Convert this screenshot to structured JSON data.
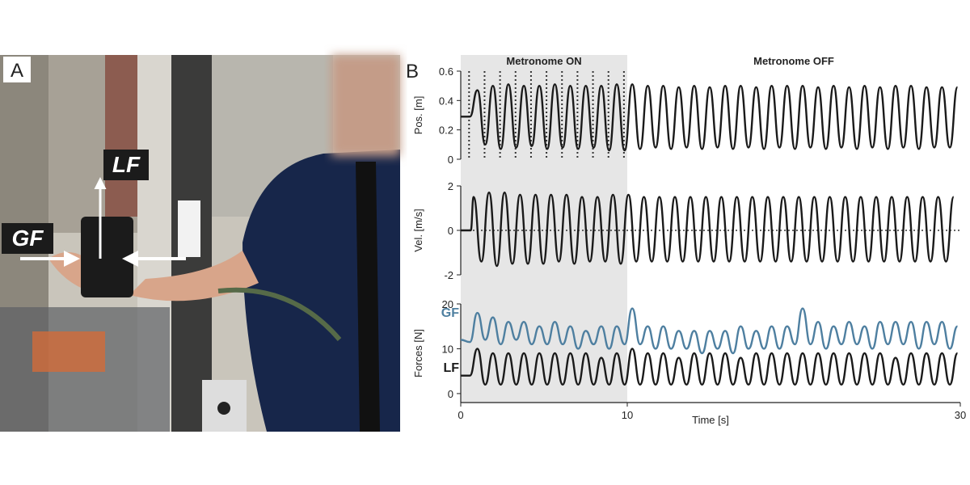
{
  "photo": {
    "panel_label": "A",
    "lf_label": "LF",
    "gf_label": "GF"
  },
  "chart_data": [
    {
      "type": "line",
      "panel_label": "B",
      "ylabel": "Pos. [m]",
      "annotations": [
        "Metronome ON",
        "Metronome OFF"
      ],
      "shade": [
        0,
        10
      ],
      "beats": [
        0.5,
        1.43,
        2.36,
        3.29,
        4.22,
        5.15,
        6.08,
        7.01,
        7.94,
        8.87,
        9.8
      ],
      "xlim": [
        0,
        30
      ],
      "ylim": [
        0,
        0.6
      ],
      "yticks": [
        0,
        0.2,
        0.4,
        0.6
      ],
      "x": [
        0,
        0.55,
        1.0,
        1.47,
        1.93,
        2.4,
        2.86,
        3.33,
        3.79,
        4.26,
        4.72,
        5.19,
        5.65,
        6.12,
        6.58,
        7.05,
        7.51,
        7.98,
        8.44,
        8.91,
        9.37,
        9.84,
        10.3,
        10.77,
        11.23,
        11.7,
        12.16,
        12.63,
        13.09,
        13.56,
        14.02,
        14.49,
        14.95,
        15.42,
        15.88,
        16.35,
        16.81,
        17.28,
        17.74,
        18.21,
        18.67,
        19.14,
        19.6,
        20.07,
        20.53,
        21.0,
        21.46,
        21.93,
        22.39,
        22.86,
        23.32,
        23.79,
        24.25,
        24.72,
        25.18,
        25.65,
        26.11,
        26.58,
        27.04,
        27.51,
        27.97,
        28.44,
        28.9,
        29.37,
        29.83
      ],
      "series": [
        {
          "color": "#1a1a1a",
          "values": [
            0.29,
            0.29,
            0.47,
            0.1,
            0.5,
            0.07,
            0.51,
            0.08,
            0.5,
            0.09,
            0.5,
            0.07,
            0.51,
            0.08,
            0.5,
            0.07,
            0.5,
            0.08,
            0.5,
            0.06,
            0.51,
            0.06,
            0.51,
            0.07,
            0.5,
            0.08,
            0.5,
            0.07,
            0.49,
            0.08,
            0.5,
            0.07,
            0.49,
            0.08,
            0.5,
            0.07,
            0.5,
            0.08,
            0.49,
            0.07,
            0.5,
            0.08,
            0.5,
            0.07,
            0.5,
            0.08,
            0.49,
            0.07,
            0.5,
            0.08,
            0.49,
            0.07,
            0.5,
            0.08,
            0.49,
            0.07,
            0.5,
            0.08,
            0.5,
            0.07,
            0.49,
            0.08,
            0.49,
            0.08,
            0.49
          ]
        }
      ]
    },
    {
      "type": "line",
      "ylabel": "Vel. [m/s]",
      "xlim": [
        0,
        30
      ],
      "ylim": [
        -2,
        2
      ],
      "yticks": [
        -2,
        0,
        2
      ],
      "x": [
        0,
        0.6,
        0.77,
        1.24,
        1.7,
        2.17,
        2.63,
        3.1,
        3.56,
        4.03,
        4.49,
        4.96,
        5.42,
        5.89,
        6.35,
        6.82,
        7.28,
        7.75,
        8.21,
        8.68,
        9.14,
        9.61,
        10.07,
        10.54,
        11.0,
        11.47,
        11.93,
        12.4,
        12.86,
        13.33,
        13.79,
        14.26,
        14.72,
        15.19,
        15.65,
        16.12,
        16.58,
        17.05,
        17.51,
        17.98,
        18.44,
        18.91,
        19.37,
        19.84,
        20.3,
        20.77,
        21.23,
        21.7,
        22.16,
        22.63,
        23.09,
        23.56,
        24.02,
        24.49,
        24.95,
        25.42,
        25.88,
        26.35,
        26.81,
        27.28,
        27.74,
        28.21,
        28.67,
        29.14,
        29.6
      ],
      "series": [
        {
          "color": "#1a1a1a",
          "values": [
            0,
            0,
            1.5,
            -1.4,
            1.7,
            -1.6,
            1.7,
            -1.5,
            1.6,
            -1.5,
            1.6,
            -1.5,
            1.6,
            -1.4,
            1.6,
            -1.5,
            1.5,
            -1.4,
            1.5,
            -1.4,
            1.6,
            -1.5,
            1.6,
            -1.4,
            1.5,
            -1.4,
            1.5,
            -1.4,
            1.5,
            -1.4,
            1.5,
            -1.4,
            1.5,
            -1.4,
            1.5,
            -1.4,
            1.5,
            -1.4,
            1.5,
            -1.4,
            1.5,
            -1.4,
            1.5,
            -1.4,
            1.5,
            -1.4,
            1.5,
            -1.4,
            1.5,
            -1.4,
            1.5,
            -1.4,
            1.5,
            -1.4,
            1.5,
            -1.4,
            1.5,
            -1.4,
            1.5,
            -1.4,
            1.5,
            -1.4,
            1.5,
            -1.4,
            1.5
          ]
        }
      ]
    },
    {
      "type": "line",
      "ylabel": "Forces [N]",
      "xlabel": "Time [s]",
      "xlim": [
        0,
        30
      ],
      "xticks": [
        0,
        10,
        30
      ],
      "ylim": [
        -2,
        20
      ],
      "yticks": [
        0,
        10,
        20
      ],
      "x": [
        0,
        0.55,
        1.0,
        1.47,
        1.93,
        2.4,
        2.86,
        3.33,
        3.79,
        4.26,
        4.72,
        5.19,
        5.65,
        6.12,
        6.58,
        7.05,
        7.51,
        7.98,
        8.44,
        8.91,
        9.37,
        9.84,
        10.3,
        10.77,
        11.23,
        11.7,
        12.16,
        12.63,
        13.09,
        13.56,
        14.02,
        14.49,
        14.95,
        15.42,
        15.88,
        16.35,
        16.81,
        17.28,
        17.74,
        18.21,
        18.67,
        19.14,
        19.6,
        20.07,
        20.53,
        21.0,
        21.46,
        21.93,
        22.39,
        22.86,
        23.32,
        23.79,
        24.25,
        24.72,
        25.18,
        25.65,
        26.11,
        26.58,
        27.04,
        27.51,
        27.97,
        28.44,
        28.9,
        29.37,
        29.83
      ],
      "series": [
        {
          "name": "GF",
          "color": "#4e7fa0",
          "values": [
            12,
            11.5,
            18,
            12,
            17,
            11,
            16,
            12,
            16,
            11,
            15,
            11,
            16,
            11,
            15,
            10,
            14,
            11,
            15,
            10,
            15,
            11,
            19,
            11,
            15,
            10,
            15,
            10,
            14,
            10,
            14,
            9,
            14,
            10,
            14,
            9,
            15,
            10,
            14,
            10,
            15,
            10,
            15,
            11,
            19,
            11,
            16,
            10,
            15,
            11,
            16,
            11,
            15,
            10,
            16,
            11,
            16,
            11,
            16,
            10,
            16,
            11,
            16,
            10,
            15
          ]
        },
        {
          "name": "LF",
          "color": "#1a1a1a",
          "values": [
            4,
            4,
            10,
            2,
            9,
            2,
            9,
            2,
            9,
            2,
            9,
            2,
            9,
            2,
            9,
            2,
            9,
            2,
            8,
            2,
            9,
            2,
            10,
            2,
            9,
            2,
            9,
            2,
            8,
            2,
            9,
            2,
            9,
            2,
            9,
            2,
            8,
            2,
            9,
            2,
            9,
            2,
            9,
            2,
            9,
            2,
            9,
            2,
            9,
            2,
            9,
            2,
            9,
            2,
            9,
            2,
            8,
            2,
            9,
            2,
            9,
            2,
            9,
            2,
            9
          ]
        }
      ]
    }
  ]
}
